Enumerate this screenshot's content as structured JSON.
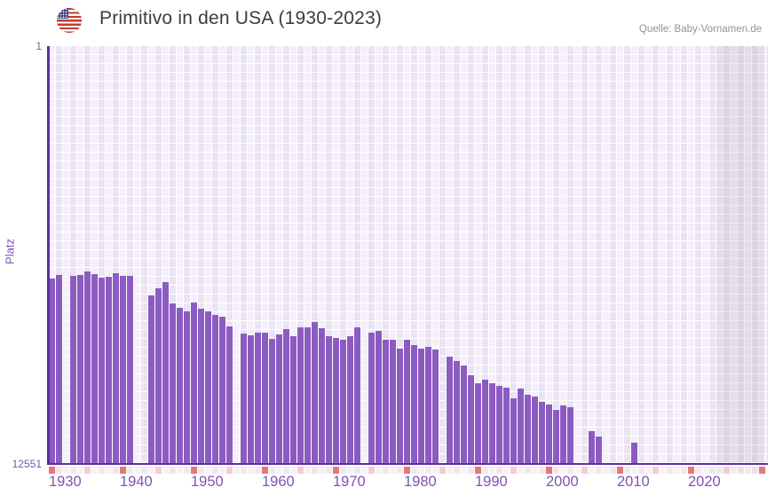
{
  "header": {
    "title": "Primitivo in den USA (1930-2023)",
    "flag_icon": "us-flag-icon",
    "source": "Quelle: Baby-Vornamen.de"
  },
  "colors": {
    "bar": "#8c5bc2",
    "axis_line": "#5c2f9b",
    "axis_label": "#7e54ae",
    "title_text": "#3b3b44",
    "source_text": "#92929c",
    "grid_column_light": "#f4effa",
    "grid_column_dark": "#eae3f4",
    "future_shade": "rgba(124,118,136,0.14)",
    "ruler_decade_tick": "#e57878",
    "ruler_half_decade_tick": "#f3ccd6",
    "ruler_light": "#f7f0f6",
    "ruler_dark": "#f0e8f1",
    "ruler_future_light": "#eeebf1",
    "ruler_future_dark": "#e7e3eb"
  },
  "chart_data": {
    "type": "bar",
    "title": "Primitivo in den USA (1930-2023)",
    "source": "Quelle: Baby-Vornamen.de",
    "xlabel": "",
    "ylabel": "Platz",
    "y_axis": {
      "min": 1,
      "max": 12551,
      "inverted": true,
      "top_label": "1",
      "bottom_label": "12551"
    },
    "x_axis": {
      "tick_labels": [
        "1930",
        "1940",
        "1950",
        "1960",
        "1970",
        "1980",
        "1990",
        "2000",
        "2010",
        "2020"
      ],
      "range_start": 1930,
      "range_end": 2030,
      "future_from": 2024
    },
    "legend": null,
    "grid": true,
    "series": [
      {
        "year": 1930,
        "rank": 6980
      },
      {
        "year": 1931,
        "rank": 6870
      },
      {
        "year": 1933,
        "rank": 6900
      },
      {
        "year": 1934,
        "rank": 6880
      },
      {
        "year": 1935,
        "rank": 6760
      },
      {
        "year": 1936,
        "rank": 6860
      },
      {
        "year": 1937,
        "rank": 6960
      },
      {
        "year": 1938,
        "rank": 6930
      },
      {
        "year": 1939,
        "rank": 6820
      },
      {
        "year": 1940,
        "rank": 6900
      },
      {
        "year": 1941,
        "rank": 6900
      },
      {
        "year": 1944,
        "rank": 7490
      },
      {
        "year": 1945,
        "rank": 7270
      },
      {
        "year": 1946,
        "rank": 7100
      },
      {
        "year": 1947,
        "rank": 7730
      },
      {
        "year": 1948,
        "rank": 7860
      },
      {
        "year": 1949,
        "rank": 7960
      },
      {
        "year": 1950,
        "rank": 7710
      },
      {
        "year": 1951,
        "rank": 7890
      },
      {
        "year": 1952,
        "rank": 7970
      },
      {
        "year": 1953,
        "rank": 8070
      },
      {
        "year": 1954,
        "rank": 8130
      },
      {
        "year": 1955,
        "rank": 8420
      },
      {
        "year": 1957,
        "rank": 8630
      },
      {
        "year": 1958,
        "rank": 8690
      },
      {
        "year": 1959,
        "rank": 8600
      },
      {
        "year": 1960,
        "rank": 8620
      },
      {
        "year": 1961,
        "rank": 8790
      },
      {
        "year": 1962,
        "rank": 8670
      },
      {
        "year": 1963,
        "rank": 8490
      },
      {
        "year": 1964,
        "rank": 8720
      },
      {
        "year": 1965,
        "rank": 8460
      },
      {
        "year": 1966,
        "rank": 8460
      },
      {
        "year": 1967,
        "rank": 8300
      },
      {
        "year": 1968,
        "rank": 8470
      },
      {
        "year": 1969,
        "rank": 8720
      },
      {
        "year": 1970,
        "rank": 8760
      },
      {
        "year": 1971,
        "rank": 8830
      },
      {
        "year": 1972,
        "rank": 8720
      },
      {
        "year": 1973,
        "rank": 8460
      },
      {
        "year": 1975,
        "rank": 8620
      },
      {
        "year": 1976,
        "rank": 8560
      },
      {
        "year": 1977,
        "rank": 8830
      },
      {
        "year": 1978,
        "rank": 8830
      },
      {
        "year": 1979,
        "rank": 9100
      },
      {
        "year": 1980,
        "rank": 8810
      },
      {
        "year": 1981,
        "rank": 8990
      },
      {
        "year": 1982,
        "rank": 9080
      },
      {
        "year": 1983,
        "rank": 9030
      },
      {
        "year": 1984,
        "rank": 9110
      },
      {
        "year": 1986,
        "rank": 9330
      },
      {
        "year": 1987,
        "rank": 9450
      },
      {
        "year": 1988,
        "rank": 9590
      },
      {
        "year": 1989,
        "rank": 9890
      },
      {
        "year": 1990,
        "rank": 10130
      },
      {
        "year": 1991,
        "rank": 10020
      },
      {
        "year": 1992,
        "rank": 10130
      },
      {
        "year": 1993,
        "rank": 10200
      },
      {
        "year": 1994,
        "rank": 10270
      },
      {
        "year": 1995,
        "rank": 10570
      },
      {
        "year": 1996,
        "rank": 10290
      },
      {
        "year": 1997,
        "rank": 10460
      },
      {
        "year": 1998,
        "rank": 10530
      },
      {
        "year": 1999,
        "rank": 10680
      },
      {
        "year": 2000,
        "rank": 10770
      },
      {
        "year": 2001,
        "rank": 10930
      },
      {
        "year": 2002,
        "rank": 10800
      },
      {
        "year": 2003,
        "rank": 10850
      },
      {
        "year": 2006,
        "rank": 11560
      },
      {
        "year": 2007,
        "rank": 11720
      },
      {
        "year": 2012,
        "rank": 11910
      }
    ],
    "missing_years": [
      1932,
      1942,
      1943,
      1956,
      1974,
      1985,
      2004,
      2005,
      2008,
      2009,
      2010,
      2011,
      2013,
      2014,
      2015,
      2016,
      2017,
      2018,
      2019,
      2020,
      2021,
      2022,
      2023
    ]
  }
}
